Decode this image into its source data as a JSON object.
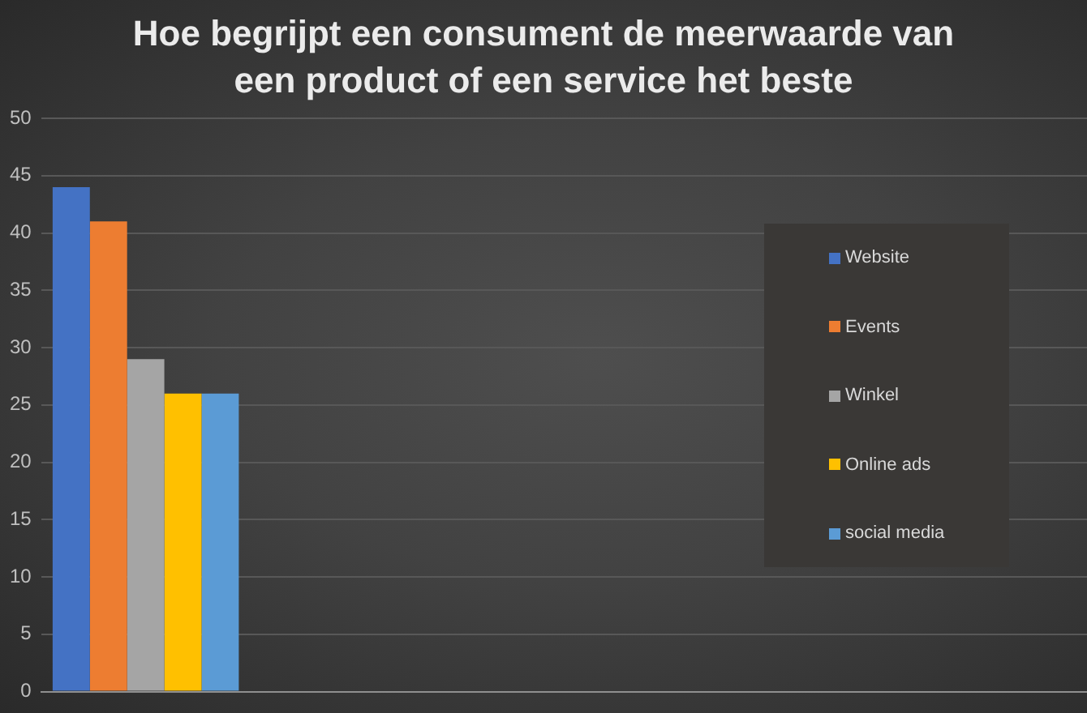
{
  "chart_data": {
    "type": "bar",
    "title": "Hoe begrijpt een consument de meerwaarde van een product of een service het beste",
    "categories": [
      null,
      null,
      null,
      null,
      null
    ],
    "series": [
      {
        "name": "Website",
        "color": "#4472c4",
        "values": [
          44,
          null,
          null,
          null,
          null
        ]
      },
      {
        "name": "Events",
        "color": "#ed7d31",
        "values": [
          41,
          null,
          null,
          null,
          null
        ]
      },
      {
        "name": "Winkel",
        "color": "#a5a5a5",
        "values": [
          29,
          null,
          null,
          null,
          null
        ]
      },
      {
        "name": "Online ads",
        "color": "#ffc000",
        "values": [
          26,
          null,
          null,
          null,
          null
        ]
      },
      {
        "name": "social media",
        "color": "#5b9bd5",
        "values": [
          26,
          null,
          null,
          null,
          null
        ]
      }
    ],
    "ylim": [
      0,
      50
    ],
    "yticks": [
      0,
      5,
      10,
      15,
      20,
      25,
      30,
      35,
      40,
      45,
      50
    ],
    "grid": "y",
    "legend": "right",
    "tick_labels": "y"
  }
}
